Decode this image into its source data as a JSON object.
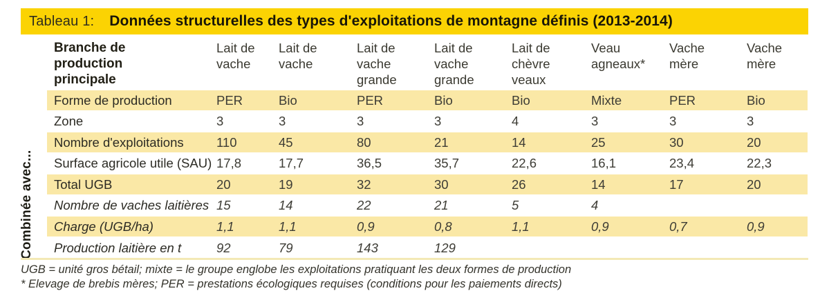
{
  "title": {
    "prefix": "Tableau 1:",
    "text": "Données structurelles des types d'exploitations de montagne définis (2013-2014)"
  },
  "side_label": "Combinée avec...",
  "colors": {
    "title_bar_yellow": "#fbd303",
    "row_highlight_yellow": "#fae8a6",
    "bottom_separator_yellow": "#f3e9b5"
  },
  "table": {
    "header": {
      "row_label": "Branche de production\nprincipale",
      "columns": [
        "Lait de\nvache",
        "Lait de\nvache",
        "Lait de\nvache\ngrande",
        "Lait de\nvache\ngrande",
        "Lait de\nchèvre\nveaux",
        "Veau\nagneaux*",
        "Vache\nmère",
        "Vache\nmère"
      ]
    },
    "rows": [
      {
        "label": "Forme de production",
        "italic": false,
        "highlight": true,
        "values": [
          "PER",
          "Bio",
          "PER",
          "Bio",
          "Bio",
          "Mixte",
          "PER",
          "Bio"
        ]
      },
      {
        "label": "Zone",
        "italic": false,
        "highlight": false,
        "values": [
          "3",
          "3",
          "3",
          "3",
          "4",
          "3",
          "3",
          "3"
        ]
      },
      {
        "label": "Nombre d'exploitations",
        "italic": false,
        "highlight": true,
        "values": [
          "110",
          "45",
          "80",
          "21",
          "14",
          "25",
          "30",
          "20"
        ]
      },
      {
        "label": "Surface agricole utile (SAU)",
        "italic": false,
        "highlight": false,
        "values": [
          "17,8",
          "17,7",
          "36,5",
          "35,7",
          "22,6",
          "16,1",
          "23,4",
          "22,3"
        ]
      },
      {
        "label": "Total UGB",
        "italic": false,
        "highlight": true,
        "values": [
          "20",
          "19",
          "32",
          "30",
          "26",
          "14",
          "17",
          "20"
        ]
      },
      {
        "label": "Nombre de vaches laitières",
        "italic": true,
        "highlight": false,
        "values": [
          "15",
          "14",
          "22",
          "21",
          "5",
          "4",
          "",
          ""
        ]
      },
      {
        "label": "Charge (UGB/ha)",
        "italic": true,
        "highlight": true,
        "values": [
          "1,1",
          "1,1",
          "0,9",
          "0,8",
          "1,1",
          "0,9",
          "0,7",
          "0,9"
        ]
      },
      {
        "label": "Production laitière en t",
        "italic": true,
        "highlight": false,
        "values": [
          "92",
          "79",
          "143",
          "129",
          "",
          "",
          "",
          ""
        ]
      }
    ]
  },
  "footnotes": [
    "UGB = unité gros bétail; mixte = le groupe englobe les exploitations pratiquant les deux formes de production",
    "* Elevage de brebis mères; PER = prestations écologiques requises (conditions pour les paiements directs)"
  ]
}
